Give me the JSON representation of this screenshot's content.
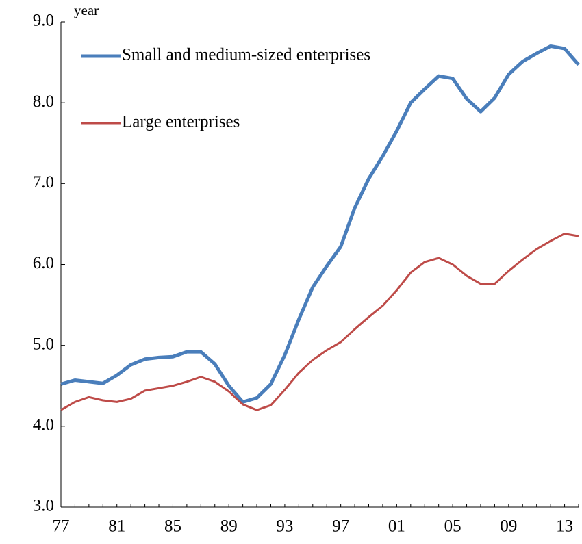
{
  "chart_data": {
    "type": "line",
    "y_label": "year",
    "x": [
      1977,
      1978,
      1979,
      1980,
      1981,
      1982,
      1983,
      1984,
      1985,
      1986,
      1987,
      1988,
      1989,
      1990,
      1991,
      1992,
      1993,
      1994,
      1995,
      1996,
      1997,
      1998,
      1999,
      2000,
      2001,
      2002,
      2003,
      2004,
      2005,
      2006,
      2007,
      2008,
      2009,
      2010,
      2011,
      2012,
      2013,
      2014
    ],
    "series": [
      {
        "name": "Small and medium-sized enterprises",
        "color": "#4a7ebb",
        "width": 5,
        "values": [
          4.52,
          4.57,
          4.55,
          4.53,
          4.63,
          4.76,
          4.83,
          4.85,
          4.86,
          4.92,
          4.92,
          4.77,
          4.5,
          4.3,
          4.35,
          4.52,
          4.88,
          5.32,
          5.72,
          5.98,
          6.22,
          6.7,
          7.06,
          7.34,
          7.65,
          8.0,
          8.17,
          8.33,
          8.3,
          8.05,
          7.89,
          8.06,
          8.35,
          8.51,
          8.61,
          8.7,
          8.67,
          8.47
        ]
      },
      {
        "name": "Large enterprises",
        "color": "#be4b48",
        "width": 3,
        "values": [
          4.2,
          4.3,
          4.36,
          4.32,
          4.3,
          4.34,
          4.44,
          4.47,
          4.5,
          4.55,
          4.61,
          4.55,
          4.43,
          4.27,
          4.2,
          4.26,
          4.45,
          4.66,
          4.82,
          4.94,
          5.04,
          5.2,
          5.35,
          5.49,
          5.68,
          5.9,
          6.03,
          6.08,
          6.0,
          5.86,
          5.76,
          5.76,
          5.92,
          6.06,
          6.19,
          6.29,
          6.38,
          6.35
        ]
      }
    ],
    "xlim": [
      1977,
      2014
    ],
    "xticks": [
      {
        "value": 1977,
        "label": "77"
      },
      {
        "value": 1981,
        "label": "81"
      },
      {
        "value": 1985,
        "label": "85"
      },
      {
        "value": 1989,
        "label": "89"
      },
      {
        "value": 1993,
        "label": "93"
      },
      {
        "value": 1997,
        "label": "97"
      },
      {
        "value": 2001,
        "label": "01"
      },
      {
        "value": 2005,
        "label": "05"
      },
      {
        "value": 2009,
        "label": "09"
      },
      {
        "value": 2013,
        "label": "13"
      }
    ],
    "ylim": [
      3,
      9
    ],
    "yticks": [
      {
        "value": 3,
        "label": "3.0"
      },
      {
        "value": 4,
        "label": "4.0"
      },
      {
        "value": 5,
        "label": "5.0"
      },
      {
        "value": 6,
        "label": "6.0"
      },
      {
        "value": 7,
        "label": "7.0"
      },
      {
        "value": 8,
        "label": "8.0"
      },
      {
        "value": 9,
        "label": "9.0"
      }
    ],
    "grid": false
  }
}
